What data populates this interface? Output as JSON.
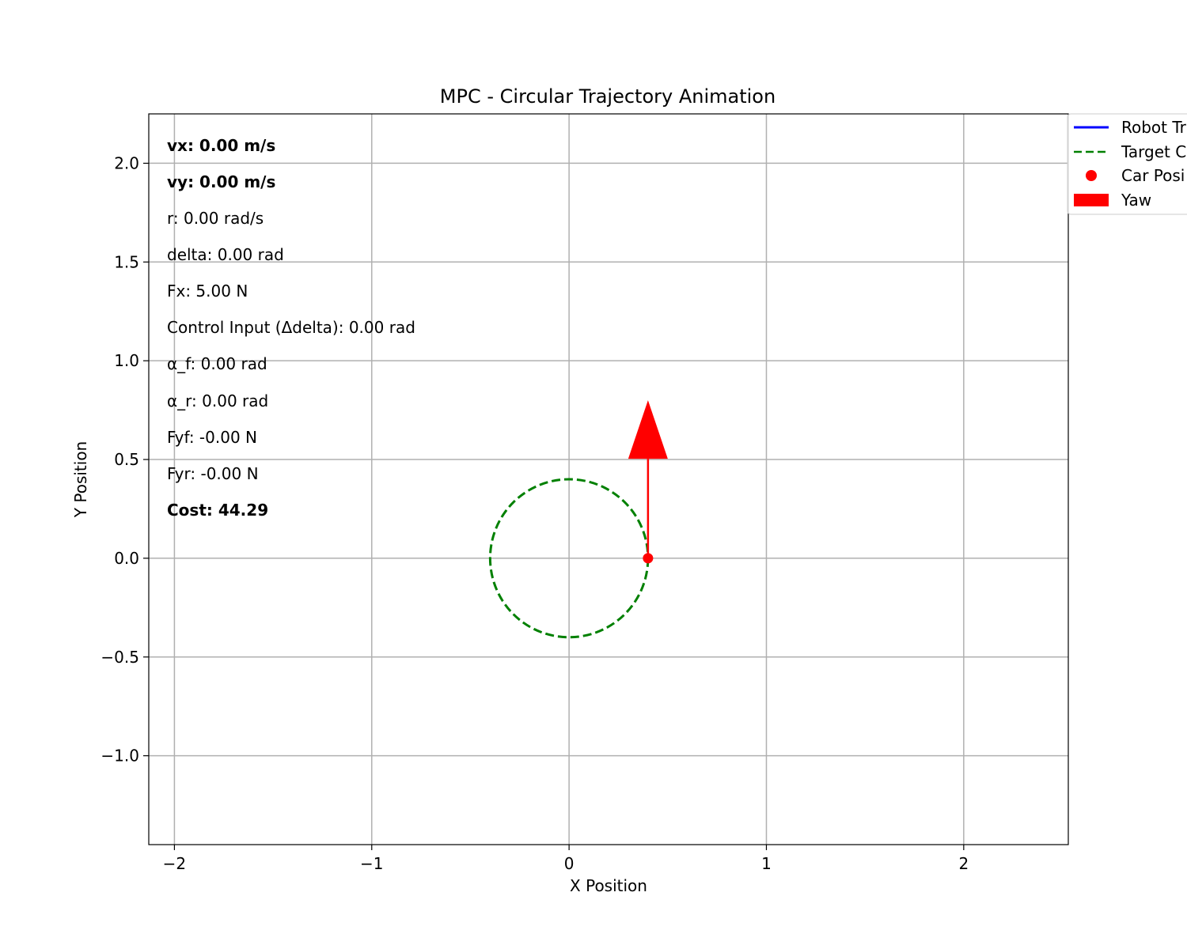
{
  "chart_data": {
    "type": "line",
    "title": "MPC - Circular Trajectory Animation",
    "xlabel": "X Position",
    "ylabel": "Y Position",
    "xlim": [
      -2.13,
      2.53
    ],
    "ylim": [
      -1.45,
      2.25
    ],
    "xticks": [
      -2,
      -1,
      0,
      1,
      2
    ],
    "xtick_labels": [
      "−2",
      "−1",
      "0",
      "1",
      "2"
    ],
    "yticks": [
      -1.0,
      -0.5,
      0.0,
      0.5,
      1.0,
      1.5,
      2.0
    ],
    "ytick_labels": [
      "−1.0",
      "−0.5",
      "0.0",
      "0.5",
      "1.0",
      "1.5",
      "2.0"
    ],
    "grid": true,
    "legend_position": "upper-right (outside, clipped)",
    "target_circle": {
      "center": [
        0,
        0
      ],
      "radius": 0.4,
      "color": "#008000",
      "style": "dashed"
    },
    "robot_trajectory": {
      "x": [],
      "y": [],
      "color": "#0000ff"
    },
    "car_position": {
      "x": 0.4,
      "y": 0.0,
      "color": "#ff0000"
    },
    "yaw_arrow": {
      "x": 0.4,
      "y": 0.0,
      "dx": 0.0,
      "dy": 0.8,
      "color": "#ff0000"
    },
    "legend": [
      {
        "label": "Robot Tr",
        "kind": "line",
        "color": "#0000ff"
      },
      {
        "label": "Target C",
        "kind": "dashed",
        "color": "#008000"
      },
      {
        "label": "Car Posi",
        "kind": "dot",
        "color": "#ff0000"
      },
      {
        "label": "Yaw",
        "kind": "patch",
        "color": "#ff0000"
      }
    ],
    "annotations": [
      {
        "text": "vx: 0.00 m/s",
        "bold": true
      },
      {
        "text": "vy: 0.00 m/s",
        "bold": true
      },
      {
        "text": "r: 0.00 rad/s",
        "bold": false
      },
      {
        "text": "delta: 0.00 rad",
        "bold": false
      },
      {
        "text": "Fx: 5.00 N",
        "bold": false
      },
      {
        "text": "Control Input (Δdelta): 0.00 rad",
        "bold": false
      },
      {
        "text": "α_f: 0.00 rad",
        "bold": false
      },
      {
        "text": "α_r: 0.00 rad",
        "bold": false
      },
      {
        "text": "Fyf: -0.00 N",
        "bold": false
      },
      {
        "text": "Fyr: -0.00 N",
        "bold": false
      },
      {
        "text": "Cost: 44.29",
        "bold": true
      }
    ]
  }
}
